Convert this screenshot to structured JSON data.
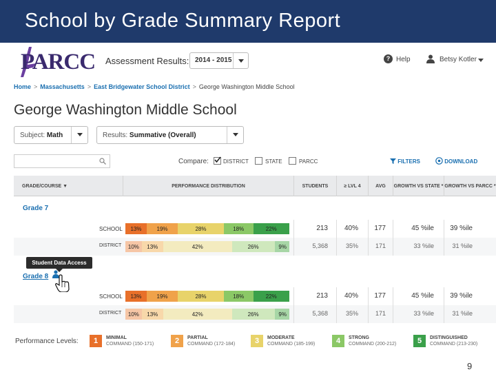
{
  "slide": {
    "title": "School by Grade Summary Report",
    "page_number": "9"
  },
  "header": {
    "logo_text": "PARCC",
    "assessment_label": "Assessment Results:",
    "year": "2014 - 2015",
    "help_label": "Help",
    "user_name": "Betsy Kotler"
  },
  "breadcrumb": [
    {
      "label": "Home",
      "link": true
    },
    {
      "label": "Massachusetts",
      "link": true
    },
    {
      "label": "East Bridgewater School District",
      "link": true
    },
    {
      "label": "George Washington Middle School",
      "link": false
    }
  ],
  "breadcrumb_sep": ">",
  "school_title": "George Washington Middle School",
  "filters": {
    "subject_label": "Subject:",
    "subject_value": "Math",
    "results_label": "Results:",
    "results_value": "Summative (Overall)"
  },
  "compare": {
    "label": "Compare:",
    "options": [
      {
        "label": "DISTRICT",
        "checked": true
      },
      {
        "label": "STATE",
        "checked": false
      },
      {
        "label": "PARCC",
        "checked": false
      }
    ],
    "filters_label": "FILTERS",
    "download_label": "DOWNLOAD"
  },
  "table": {
    "headers": [
      "GRADE/COURSE ▼",
      "PERFORMANCE DISTRIBUTION",
      "STUDENTS",
      "≥ LVL 4",
      "AVG",
      "GROWTH VS STATE *",
      "GROWTH VS PARCC *"
    ],
    "grades": [
      {
        "name": "Grade 7",
        "rows": [
          {
            "label": "SCHOOL",
            "dist": [
              "13%",
              "19%",
              "28%",
              "18%",
              "22%"
            ],
            "dist_values": [
              13,
              19,
              28,
              18,
              22
            ],
            "students": "213",
            "lvl4": "40%",
            "avg": "177",
            "growth_state": "45 %ile",
            "growth_parcc": "39 %ile"
          },
          {
            "label": "DISTRICT",
            "dist": [
              "10%",
              "13%",
              "42%",
              "26%",
              "9%"
            ],
            "dist_values": [
              10,
              13,
              42,
              26,
              9
            ],
            "students": "5,368",
            "lvl4": "35%",
            "avg": "171",
            "growth_state": "33 %ile",
            "growth_parcc": "31 %ile"
          }
        ]
      },
      {
        "name": "Grade 8",
        "rows": [
          {
            "label": "SCHOOL",
            "dist": [
              "13%",
              "19%",
              "28%",
              "18%",
              "22%"
            ],
            "dist_values": [
              13,
              19,
              28,
              18,
              22
            ],
            "students": "213",
            "lvl4": "40%",
            "avg": "177",
            "growth_state": "45 %ile",
            "growth_parcc": "39 %ile"
          },
          {
            "label": "DISTRICT",
            "dist": [
              "10%",
              "13%",
              "42%",
              "26%",
              "9%"
            ],
            "dist_values": [
              10,
              13,
              42,
              26,
              9
            ],
            "students": "5,368",
            "lvl4": "35%",
            "avg": "171",
            "growth_state": "33 %ile",
            "growth_parcc": "31 %ile"
          }
        ]
      }
    ]
  },
  "tooltip": "Student Data Access",
  "legend": {
    "title": "Performance Levels:",
    "levels": [
      {
        "num": "1",
        "name": "MINIMAL",
        "sub": "COMMAND (150-171)",
        "color": "#e8702a"
      },
      {
        "num": "2",
        "name": "PARTIAL",
        "sub": "COMMAND (172-184)",
        "color": "#f0a24a"
      },
      {
        "num": "3",
        "name": "MODERATE",
        "sub": "COMMAND (185-199)",
        "color": "#e8d36a"
      },
      {
        "num": "4",
        "name": "STRONG",
        "sub": "COMMAND (200-212)",
        "color": "#8bc866"
      },
      {
        "num": "5",
        "name": "DISTINGUISHED",
        "sub": "COMMAND (213-230)",
        "color": "#3aa04a"
      }
    ]
  },
  "colors": {
    "school_segments": [
      "#e8702a",
      "#f0a24a",
      "#e8d36a",
      "#8bc866",
      "#3aa04a"
    ],
    "district_segments": [
      "#f6c6a6",
      "#f8d8aa",
      "#f3ebbf",
      "#cfe8bd",
      "#a7d6a6"
    ],
    "title_bar": "#1f3a6b",
    "link": "#1a6fb0"
  }
}
